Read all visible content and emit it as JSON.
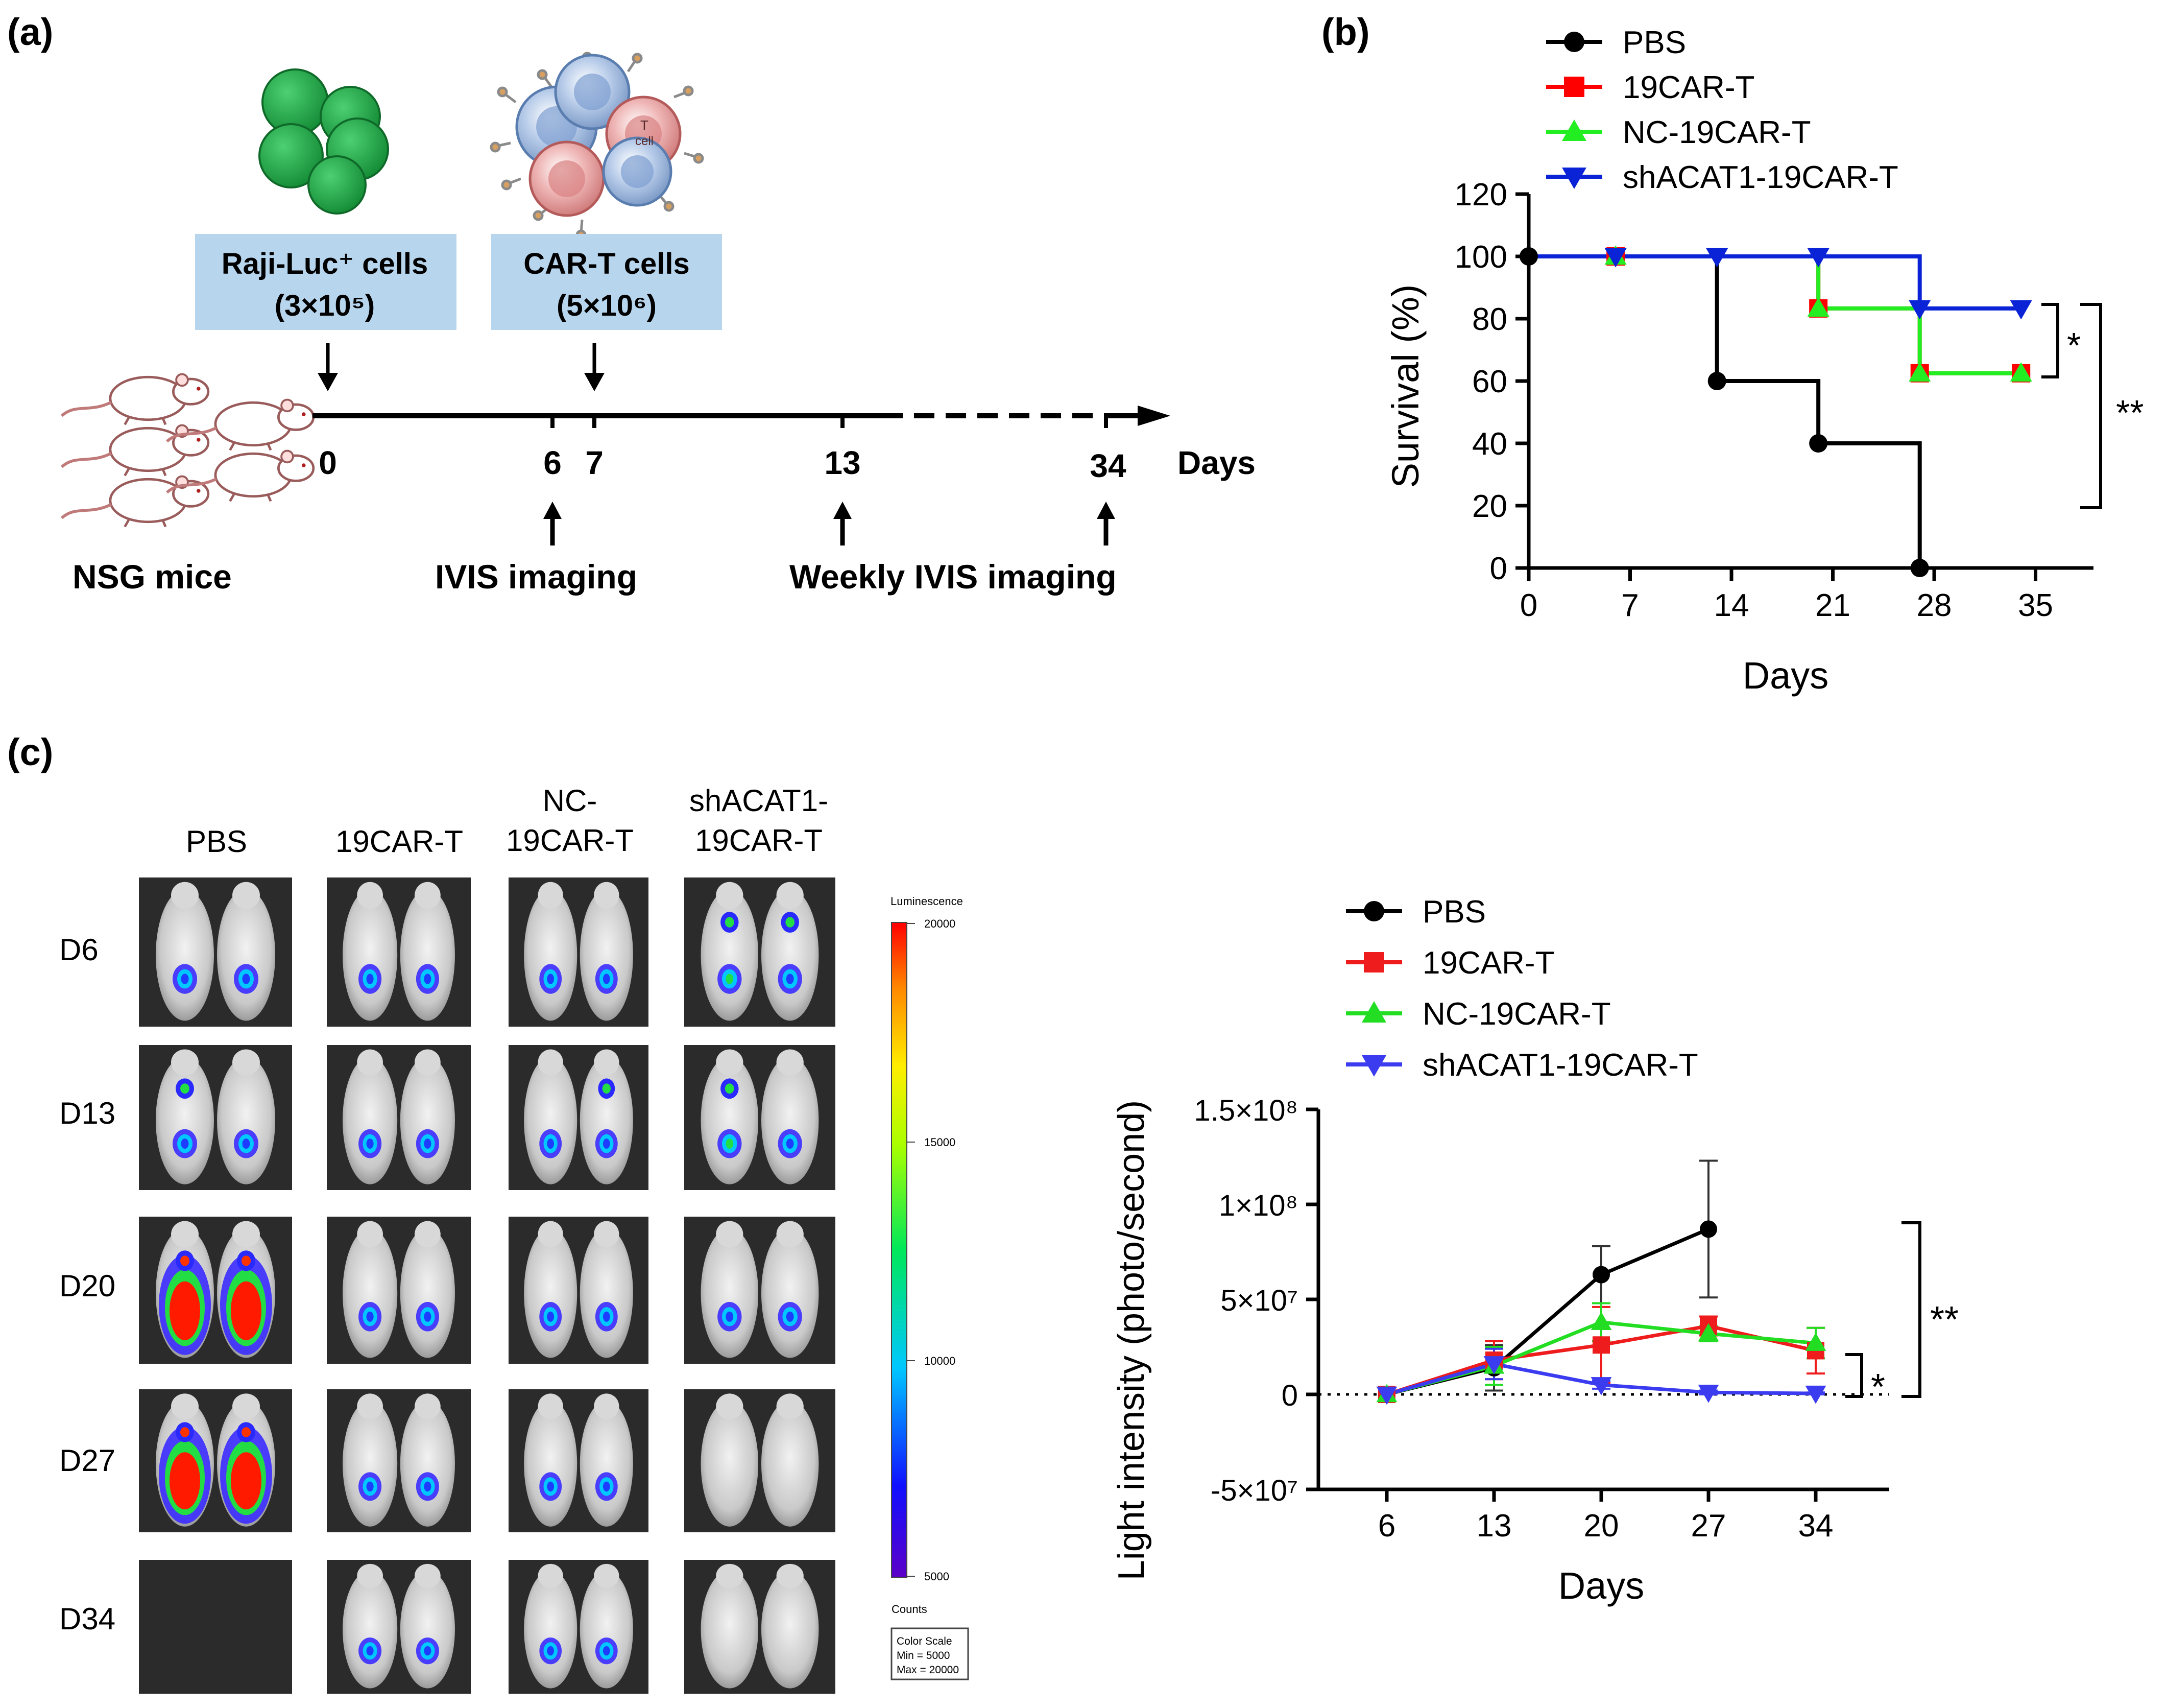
{
  "panel_a": {
    "label": "(a)",
    "raji_label": "Raji-Luc⁺ cells",
    "raji_dose": "(3×10⁵)",
    "cart_label": "CAR-T cells",
    "cart_dose": "(5×10⁶)",
    "cell_letter": "T",
    "cell_word": "cell",
    "timeline_days": [
      "0",
      "6",
      "7",
      "13",
      "34"
    ],
    "days_label": "Days",
    "mice_label": "NSG mice",
    "ivis_label": "IVIS  imaging",
    "weekly_label": "Weekly IVIS  imaging",
    "colors": {
      "raji": "#1ea043",
      "box": "#b8d5ee"
    }
  },
  "panel_b": {
    "label": "(b)",
    "sig_star": "*",
    "sig_double": "**",
    "chart_data": {
      "type": "line",
      "step": true,
      "xlabel": "Days",
      "ylabel": "Survival (%)",
      "xlim": [
        0,
        39
      ],
      "ylim": [
        0,
        120
      ],
      "xticks": [
        "0",
        "7",
        "14",
        "21",
        "28",
        "35"
      ],
      "yticks": [
        "0",
        "20",
        "40",
        "60",
        "80",
        "100",
        "120"
      ],
      "legend_position": "top",
      "series": [
        {
          "name": "PBS",
          "color": "#000000",
          "marker": "circle",
          "x": [
            0,
            13,
            20,
            27
          ],
          "y": [
            100,
            60,
            40,
            0
          ]
        },
        {
          "name": "19CAR-T",
          "color": "#ff0000",
          "marker": "square",
          "x": [
            6,
            20,
            27,
            34
          ],
          "y": [
            100,
            83.3,
            62.5,
            62.5
          ]
        },
        {
          "name": "NC-19CAR-T",
          "color": "#22ee22",
          "marker": "triangle-up",
          "x": [
            6,
            20,
            27,
            34
          ],
          "y": [
            100,
            83.3,
            62.5,
            62.5
          ]
        },
        {
          "name": "shACAT1-19CAR-T",
          "color": "#0a23d6",
          "marker": "triangle-down",
          "x": [
            6,
            13,
            20,
            27,
            34
          ],
          "y": [
            100,
            100,
            100,
            83.3,
            83.3
          ]
        }
      ]
    }
  },
  "panel_c": {
    "label": "(c)",
    "groups": [
      "PBS",
      "19CAR-T",
      "NC-19CAR-T",
      "shACAT1-19CAR-T"
    ],
    "days": [
      "D6",
      "D13",
      "D20",
      "D27",
      "D34"
    ],
    "colorbar": {
      "title": "Luminescence",
      "ticks": [
        "20000",
        "15000",
        "10000",
        "5000"
      ],
      "counts_label": "Counts",
      "scale_lines": [
        "Color Scale",
        "Min = 5000",
        "Max = 20000"
      ]
    },
    "sig_star": "*",
    "sig_double": "**",
    "chart_data": {
      "type": "line",
      "xlabel": "Days",
      "ylabel": "Light intensity (photo/second)",
      "ylim": [
        -50000000,
        150000000
      ],
      "xticks": [
        "6",
        "13",
        "20",
        "27",
        "34"
      ],
      "yticks": [
        "-5×10⁷",
        "0",
        "5×10⁷",
        "1×10⁸",
        "1.5×10⁸"
      ],
      "legend_position": "top",
      "series": [
        {
          "name": "PBS",
          "color": "#000000",
          "marker": "circle",
          "x": [
            6,
            13,
            20,
            27
          ],
          "y": [
            0,
            14000000,
            63000000,
            87000000
          ],
          "err": [
            0,
            12000000,
            15000000,
            36000000
          ]
        },
        {
          "name": "19CAR-T",
          "color": "#ee1c1c",
          "marker": "square",
          "x": [
            6,
            13,
            20,
            27,
            34
          ],
          "y": [
            0,
            18000000,
            26000000,
            36000000,
            23000000
          ],
          "err": [
            0,
            10000000,
            20000000,
            5000000,
            12000000
          ]
        },
        {
          "name": "NC-19CAR-T",
          "color": "#22dd22",
          "marker": "triangle-up",
          "x": [
            6,
            13,
            20,
            27,
            34
          ],
          "y": [
            0,
            15000000,
            38000000,
            32000000,
            27000000
          ],
          "err": [
            0,
            10000000,
            10000000,
            4000000,
            8000000
          ]
        },
        {
          "name": "shACAT1-19CAR-T",
          "color": "#3b3bf0",
          "marker": "triangle-down",
          "x": [
            6,
            13,
            20,
            27,
            34
          ],
          "y": [
            0,
            16000000,
            5000000,
            1000000,
            500000
          ],
          "err": [
            0,
            8000000,
            2000000,
            1000000,
            500000
          ]
        }
      ]
    }
  }
}
